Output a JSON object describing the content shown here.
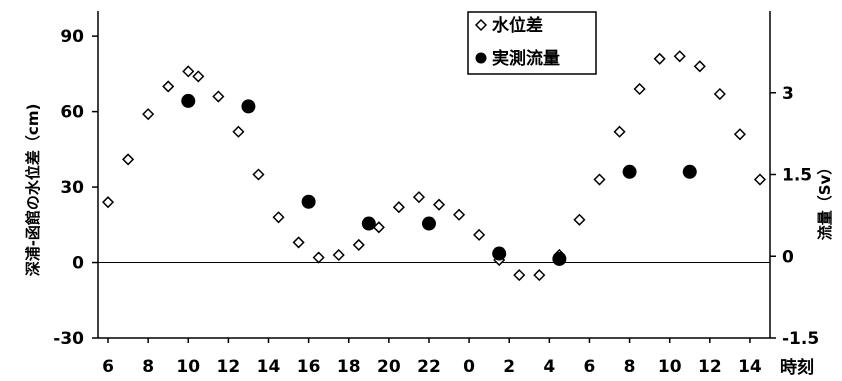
{
  "chart_data": {
    "type": "scatter",
    "title": "",
    "xlabel": "時刻",
    "ylabel": "深浦-函館の水位差（cm)",
    "y2label": "流量（Sv）",
    "x_tick_labels": [
      "6",
      "8",
      "10",
      "12",
      "14",
      "16",
      "18",
      "20",
      "22",
      "0",
      "2",
      "4",
      "6",
      "8",
      "10",
      "12",
      "14"
    ],
    "ylim": [
      -30,
      100
    ],
    "y_ticks": [
      -30,
      0,
      30,
      60,
      90
    ],
    "y_tick_labels": [
      "-30",
      "0",
      "30",
      "60",
      "90"
    ],
    "y2lim": [
      -1.5,
      4.5
    ],
    "y2_ticks": [
      -1.5,
      0,
      1.5,
      3
    ],
    "y2_tick_labels": [
      "-1.5",
      "0",
      "1.5",
      "3"
    ],
    "grid": false,
    "legend_position": "top-right",
    "series": [
      {
        "name": "水位差",
        "marker": "diamond-open",
        "axis": "left",
        "points": [
          [
            5,
            24
          ],
          [
            6,
            41
          ],
          [
            7,
            59
          ],
          [
            8,
            70
          ],
          [
            9,
            76
          ],
          [
            9.5,
            74
          ],
          [
            10.5,
            66
          ],
          [
            11.5,
            52
          ],
          [
            12.5,
            35
          ],
          [
            13.5,
            18
          ],
          [
            14.5,
            8
          ],
          [
            15.5,
            2
          ],
          [
            16.5,
            3
          ],
          [
            17.5,
            7
          ],
          [
            18.5,
            14
          ],
          [
            19.5,
            22
          ],
          [
            20.5,
            26
          ],
          [
            21.5,
            23
          ],
          [
            22.5,
            19
          ],
          [
            23.5,
            11
          ],
          [
            24.5,
            1
          ],
          [
            25.5,
            -5
          ],
          [
            26.5,
            -5
          ],
          [
            27.5,
            3
          ],
          [
            28.5,
            17
          ],
          [
            29.5,
            33
          ],
          [
            30.5,
            52
          ],
          [
            31.5,
            69
          ],
          [
            32.5,
            81
          ],
          [
            33.5,
            82
          ],
          [
            34.5,
            78
          ],
          [
            35.5,
            67
          ],
          [
            36.5,
            51
          ],
          [
            37.5,
            33
          ]
        ]
      },
      {
        "name": "実測流量",
        "marker": "circle-filled",
        "axis": "right",
        "points": [
          [
            9,
            2.85
          ],
          [
            12,
            2.75
          ],
          [
            15,
            1.0
          ],
          [
            18,
            0.6
          ],
          [
            21,
            0.6
          ],
          [
            24.5,
            0.05
          ],
          [
            27.5,
            -0.05
          ],
          [
            31,
            1.55
          ],
          [
            34,
            1.55
          ]
        ]
      }
    ]
  }
}
